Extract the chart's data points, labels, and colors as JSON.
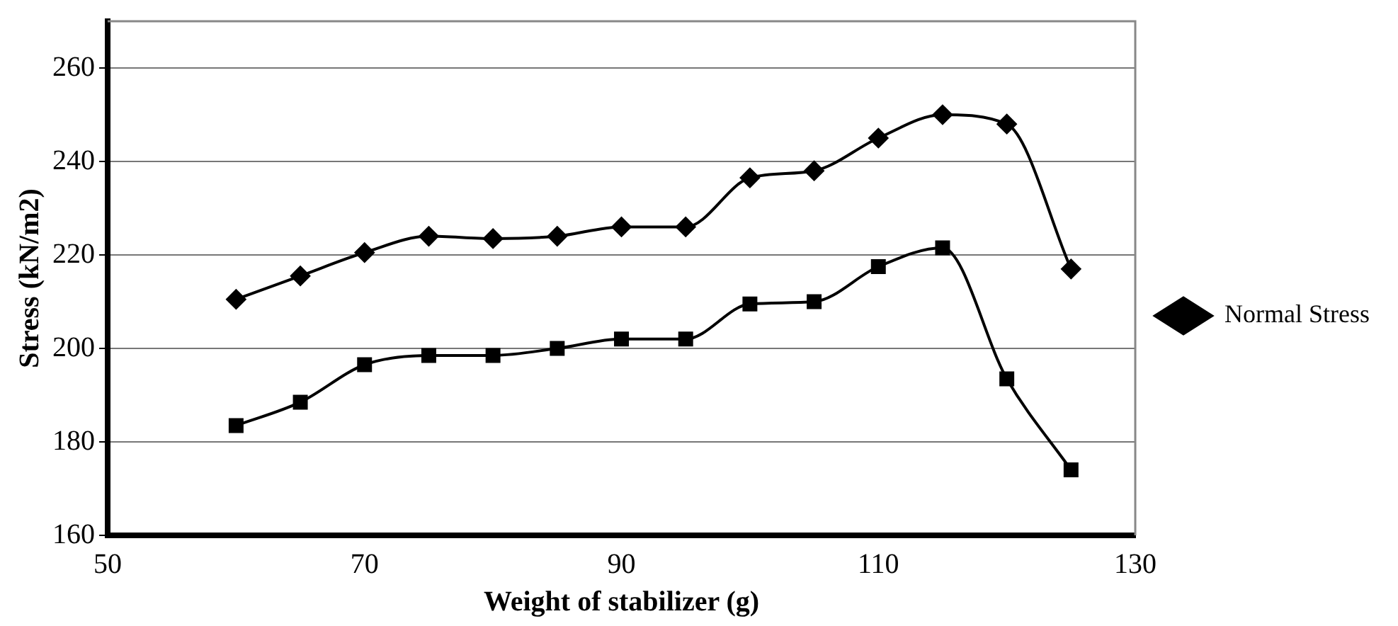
{
  "chart_data": {
    "type": "line",
    "xlabel": "Weight of stabilizer (g)",
    "ylabel": "Stress (kN/m2)",
    "x": [
      60,
      65,
      70,
      75,
      80,
      85,
      90,
      95,
      100,
      105,
      110,
      115,
      120,
      125
    ],
    "series": [
      {
        "name": "Normal Stress",
        "color": "#000000",
        "marker": "diamond",
        "values": [
          210.5,
          215.5,
          220.5,
          224,
          223.5,
          224,
          226,
          226,
          236.5,
          238,
          245,
          250,
          248,
          217
        ]
      },
      {
        "color": "#000000",
        "marker": "square",
        "values": [
          183.5,
          188.5,
          196.5,
          198.5,
          198.5,
          200,
          202,
          202,
          209.5,
          210,
          217.5,
          221.5,
          193.5,
          174
        ]
      }
    ],
    "xlim": [
      50,
      130
    ],
    "xticks": [
      50,
      70,
      90,
      110,
      130
    ],
    "ylim": [
      160,
      270
    ],
    "yticks": [
      160,
      180,
      200,
      220,
      240,
      260
    ],
    "grid": "y",
    "legend": "right",
    "line_style": "solid"
  }
}
